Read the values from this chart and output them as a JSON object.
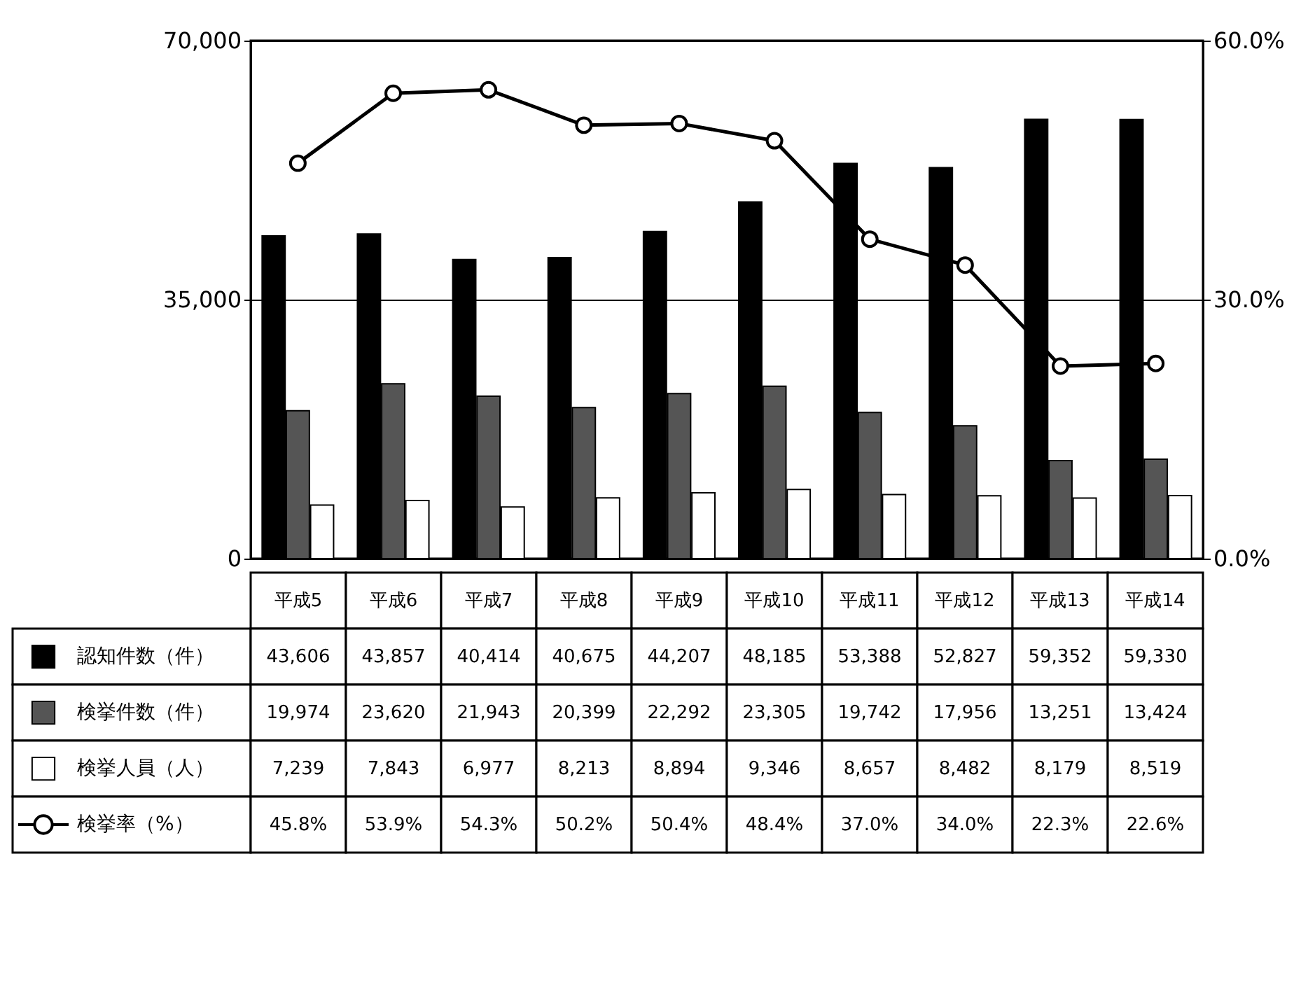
{
  "chart_data": {
    "type": "bar",
    "categories": [
      "平成5",
      "平成6",
      "平成7",
      "平成8",
      "平成9",
      "平成10",
      "平成11",
      "平成12",
      "平成13",
      "平成14"
    ],
    "series": [
      {
        "name": "認知件数（件）",
        "color": "#000000",
        "values": [
          43606,
          43857,
          40414,
          40675,
          44207,
          48185,
          53388,
          52827,
          59352,
          59330
        ],
        "value_labels": [
          "43,606",
          "43,857",
          "40,414",
          "40,675",
          "44,207",
          "48,185",
          "53,388",
          "52,827",
          "59,352",
          "59,330"
        ]
      },
      {
        "name": "検挙件数（件）",
        "color": "#555555",
        "values": [
          19974,
          23620,
          21943,
          20399,
          22292,
          23305,
          19742,
          17956,
          13251,
          13424
        ],
        "value_labels": [
          "19,974",
          "23,620",
          "21,943",
          "20,399",
          "22,292",
          "23,305",
          "19,742",
          "17,956",
          "13,251",
          "13,424"
        ]
      },
      {
        "name": "検挙人員（人）",
        "color": "#ffffff",
        "values": [
          7239,
          7843,
          6977,
          8213,
          8894,
          9346,
          8657,
          8482,
          8179,
          8519
        ],
        "value_labels": [
          "7,239",
          "7,843",
          "6,977",
          "8,213",
          "8,894",
          "9,346",
          "8,657",
          "8,482",
          "8,179",
          "8,519"
        ]
      },
      {
        "name": "検挙率（%）",
        "type": "line",
        "axis": "y2",
        "color": "#000000",
        "marker": "circle",
        "values": [
          45.8,
          53.9,
          54.3,
          50.2,
          50.4,
          48.4,
          37.0,
          34.0,
          22.3,
          22.6
        ],
        "value_labels": [
          "45.8%",
          "53.9%",
          "54.3%",
          "50.2%",
          "50.4%",
          "48.4%",
          "37.0%",
          "34.0%",
          "22.3%",
          "22.6%"
        ]
      }
    ],
    "ylim": [
      0,
      70000
    ],
    "yticks": [
      {
        "value": 0,
        "label": "0"
      },
      {
        "value": 35000,
        "label": "35,000"
      },
      {
        "value": 70000,
        "label": "70,000"
      }
    ],
    "y2lim": [
      0,
      60
    ],
    "y2ticks": [
      {
        "value": 0,
        "label": "0.0%"
      },
      {
        "value": 30,
        "label": "30.0%"
      },
      {
        "value": 60,
        "label": "60.0%"
      }
    ],
    "grid": "y",
    "legend": "bottom"
  }
}
